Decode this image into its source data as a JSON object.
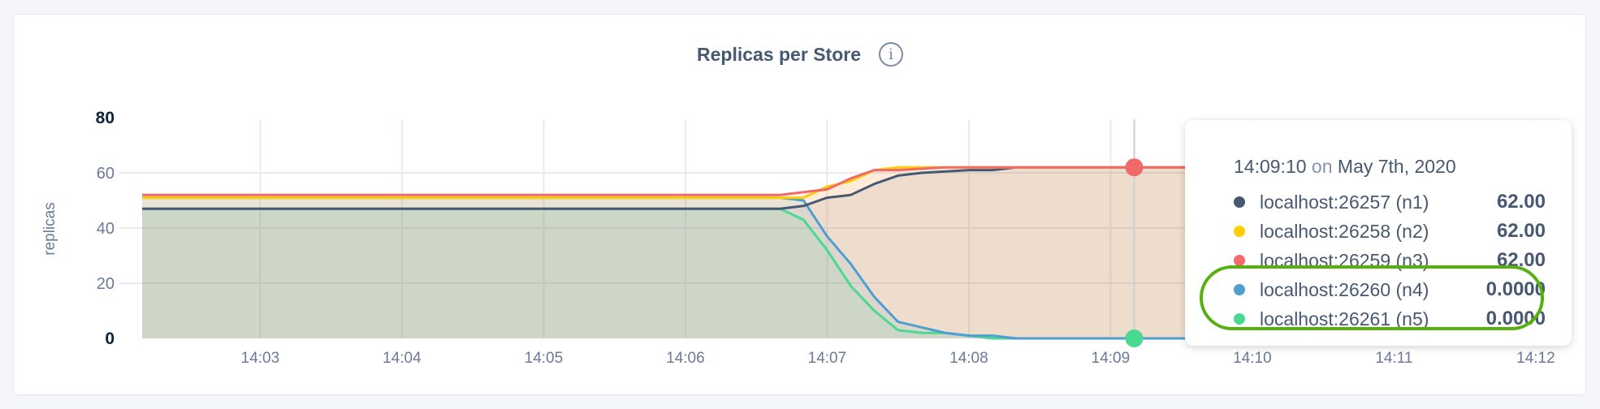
{
  "chart_data": {
    "type": "area",
    "title": "Replicas per Store",
    "ylabel": "replicas",
    "xlabel": "",
    "ylim": [
      0,
      80
    ],
    "xlim": [
      "14:02:10",
      "14:12:10"
    ],
    "yticks": [
      "0",
      "20",
      "40",
      "60",
      "80"
    ],
    "xticks": [
      "14:03",
      "14:04",
      "14:05",
      "14:06",
      "14:07",
      "14:08",
      "14:09",
      "14:10",
      "14:11",
      "14:12"
    ],
    "grid": true,
    "series": [
      {
        "name": "localhost:26257 (n1)",
        "color": "#475872",
        "points": [
          [
            "14:02:10",
            47
          ],
          [
            "14:06:40",
            47
          ],
          [
            "14:06:50",
            48
          ],
          [
            "14:07:00",
            51
          ],
          [
            "14:07:10",
            52
          ],
          [
            "14:07:20",
            56
          ],
          [
            "14:07:30",
            59
          ],
          [
            "14:07:40",
            60
          ],
          [
            "14:08:00",
            61
          ],
          [
            "14:08:10",
            61
          ],
          [
            "14:08:20",
            62
          ],
          [
            "14:12:10",
            62
          ]
        ]
      },
      {
        "name": "localhost:26258 (n2)",
        "color": "#ffcd02",
        "points": [
          [
            "14:02:10",
            51
          ],
          [
            "14:06:40",
            51
          ],
          [
            "14:06:50",
            51
          ],
          [
            "14:07:00",
            55
          ],
          [
            "14:07:10",
            57
          ],
          [
            "14:07:20",
            61
          ],
          [
            "14:07:30",
            62
          ],
          [
            "14:12:10",
            62
          ]
        ]
      },
      {
        "name": "localhost:26259 (n3)",
        "color": "#f16969",
        "points": [
          [
            "14:02:10",
            52
          ],
          [
            "14:06:40",
            52
          ],
          [
            "14:06:50",
            53
          ],
          [
            "14:07:00",
            54
          ],
          [
            "14:07:10",
            58
          ],
          [
            "14:07:20",
            61
          ],
          [
            "14:07:30",
            61
          ],
          [
            "14:07:50",
            62
          ],
          [
            "14:12:10",
            62
          ]
        ]
      },
      {
        "name": "localhost:26260 (n4)",
        "color": "#4e9fd1",
        "points": [
          [
            "14:02:10",
            51
          ],
          [
            "14:06:40",
            51
          ],
          [
            "14:06:50",
            50
          ],
          [
            "14:07:00",
            37
          ],
          [
            "14:07:10",
            27
          ],
          [
            "14:07:20",
            15
          ],
          [
            "14:07:30",
            6
          ],
          [
            "14:07:40",
            4
          ],
          [
            "14:07:50",
            2
          ],
          [
            "14:08:00",
            1
          ],
          [
            "14:08:10",
            1
          ],
          [
            "14:08:20",
            0
          ],
          [
            "14:12:10",
            0
          ]
        ]
      },
      {
        "name": "localhost:26261 (n5)",
        "color": "#49d990",
        "points": [
          [
            "14:02:10",
            47
          ],
          [
            "14:06:40",
            47
          ],
          [
            "14:06:50",
            43
          ],
          [
            "14:07:00",
            32
          ],
          [
            "14:07:10",
            19
          ],
          [
            "14:07:20",
            10
          ],
          [
            "14:07:30",
            3
          ],
          [
            "14:07:40",
            2
          ],
          [
            "14:07:50",
            2
          ],
          [
            "14:08:00",
            1
          ],
          [
            "14:08:10",
            0
          ],
          [
            "14:12:10",
            0
          ]
        ]
      }
    ],
    "hover": {
      "time": "14:09:10",
      "highlighted_points": [
        {
          "series": "localhost:26259 (n3)",
          "value": 62
        },
        {
          "series": "localhost:26261 (n5)",
          "value": 0
        }
      ]
    }
  },
  "tooltip": {
    "time": "14:09:10",
    "on": "on",
    "date": "May 7th, 2020",
    "rows": [
      {
        "label": "localhost:26257 (n1)",
        "value": "62.00",
        "color": "#475872"
      },
      {
        "label": "localhost:26258 (n2)",
        "value": "62.00",
        "color": "#ffcd02"
      },
      {
        "label": "localhost:26259 (n3)",
        "value": "62.00",
        "color": "#f16969"
      },
      {
        "label": "localhost:26260 (n4)",
        "value": "0.0000",
        "color": "#4e9fd1"
      },
      {
        "label": "localhost:26261 (n5)",
        "value": "0.0000",
        "color": "#49d990"
      }
    ]
  },
  "info_icon": "info-circle-icon",
  "highlight_color": "#55b010"
}
